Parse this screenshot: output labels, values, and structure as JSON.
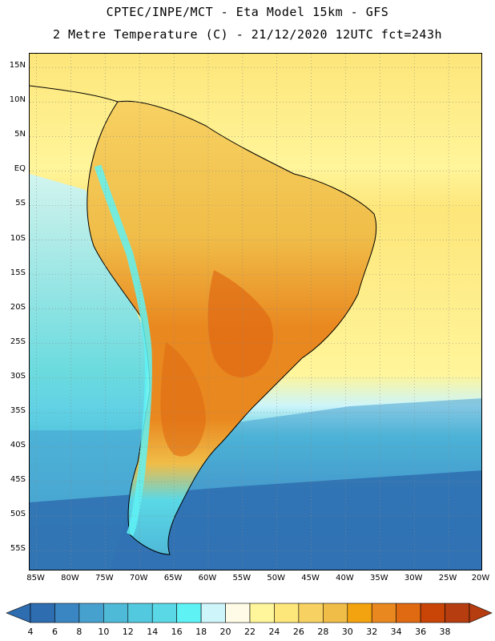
{
  "header": {
    "title_line1": "CPTEC/INPE/MCT -  Eta Model 15km - GFS",
    "title_line2": "2 Metre Temperature (C) - 21/12/2020 12UTC fct=243h"
  },
  "axes": {
    "lat_labels": [
      "15N",
      "10N",
      "5N",
      "EQ",
      "5S",
      "10S",
      "15S",
      "20S",
      "25S",
      "30S",
      "35S",
      "40S",
      "45S",
      "50S",
      "55S"
    ],
    "lat_values": [
      15,
      10,
      5,
      0,
      -5,
      -10,
      -15,
      -20,
      -25,
      -30,
      -35,
      -40,
      -45,
      -50,
      -55
    ],
    "lon_labels": [
      "85W",
      "80W",
      "75W",
      "70W",
      "65W",
      "60W",
      "55W",
      "50W",
      "45W",
      "40W",
      "35W",
      "30W",
      "25W",
      "20W"
    ],
    "lon_values": [
      -85,
      -80,
      -75,
      -70,
      -65,
      -60,
      -55,
      -50,
      -45,
      -40,
      -35,
      -30,
      -25,
      -20
    ],
    "lat_range": [
      -58,
      17
    ],
    "lon_range": [
      -86,
      -20
    ],
    "grid": "dotted"
  },
  "colorbar": {
    "labels": [
      "4",
      "6",
      "8",
      "10",
      "12",
      "14",
      "16",
      "18",
      "20",
      "22",
      "24",
      "26",
      "28",
      "30",
      "32",
      "34",
      "36",
      "38"
    ],
    "colors": [
      "#2e6db0",
      "#3a86c3",
      "#47a1cf",
      "#4fb9d8",
      "#52c9de",
      "#5ad8e6",
      "#5ff2f5",
      "#cdf5fa",
      "#fffbe6",
      "#fff59a",
      "#fde67a",
      "#f7d162",
      "#f0bd48",
      "#f3a30f",
      "#e9881f",
      "#e06a12",
      "#c84407",
      "#b53d10"
    ],
    "left_end_color": "#2e6db0",
    "right_end_color": "#b53d10"
  }
}
